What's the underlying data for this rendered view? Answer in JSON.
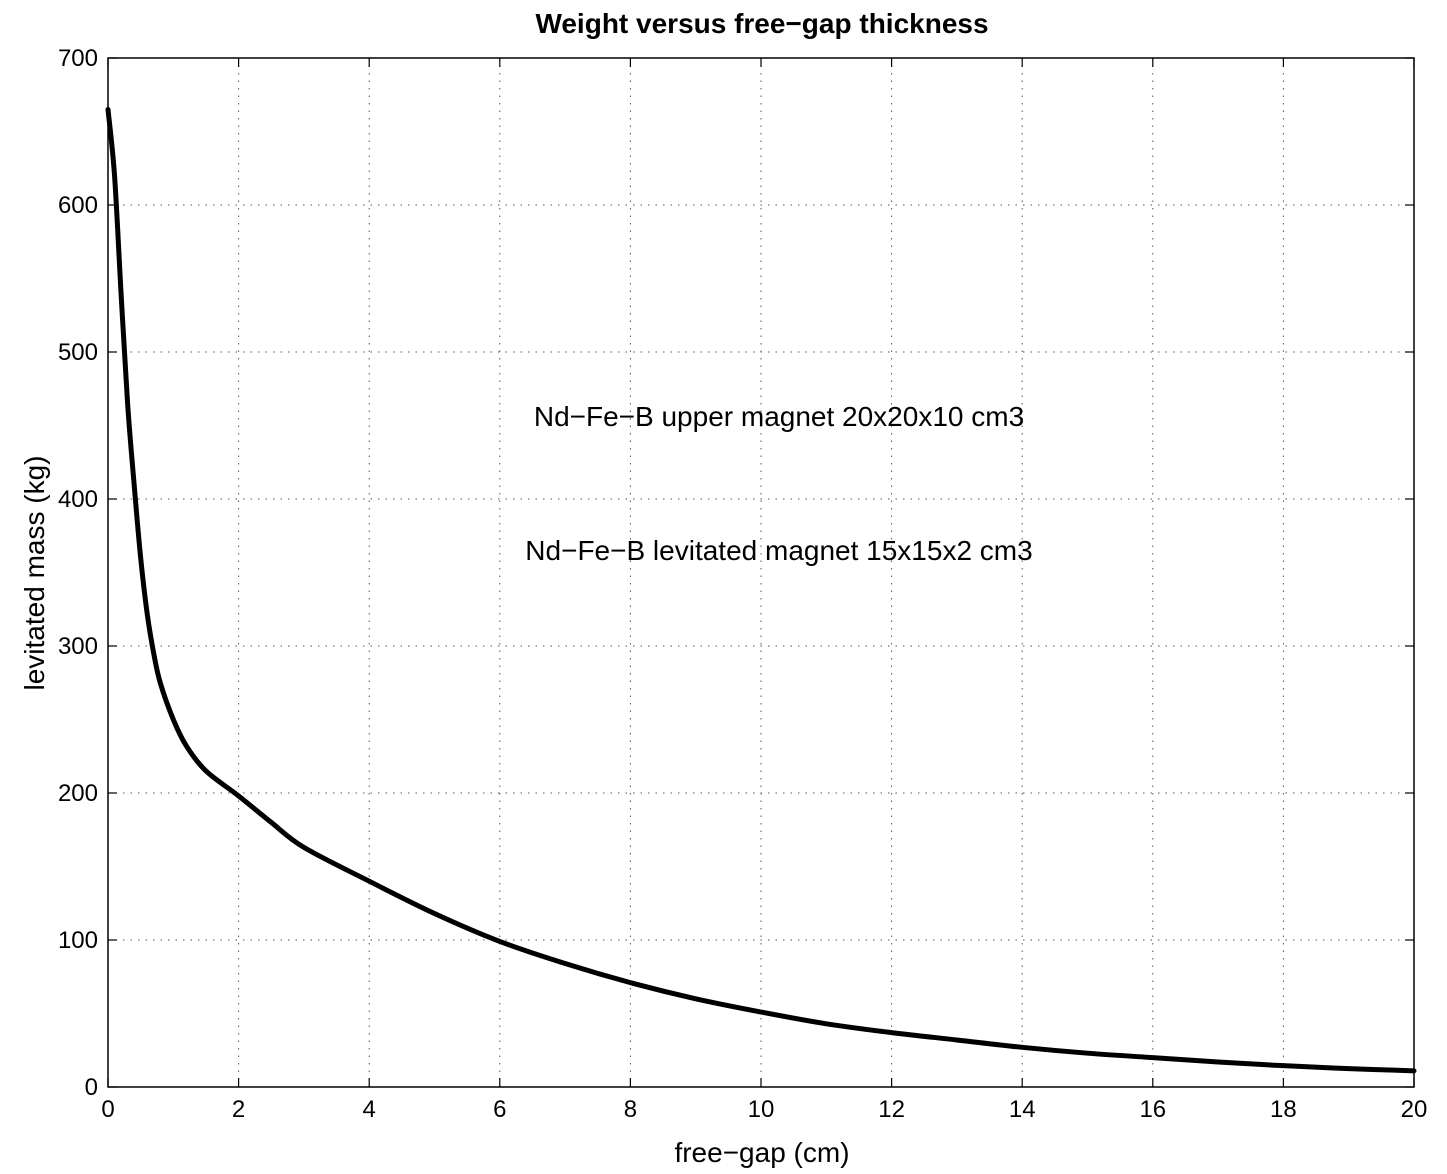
{
  "chart_data": {
    "type": "line",
    "title": "Weight versus free−gap thickness",
    "xlabel": "free−gap (cm)",
    "ylabel": "levitated mass (kg)",
    "xlim": [
      0,
      20
    ],
    "ylim": [
      0,
      700
    ],
    "xticks": [
      "0",
      "2",
      "4",
      "6",
      "8",
      "10",
      "12",
      "14",
      "16",
      "18",
      "20"
    ],
    "yticks": [
      "0",
      "100",
      "200",
      "300",
      "400",
      "500",
      "600",
      "700"
    ],
    "grid": true,
    "annotations": [
      "Nd−Fe−B upper magnet 20x20x10 cm3",
      "Nd−Fe−B levitated magnet 15x15x2 cm3"
    ],
    "series": [
      {
        "x": [
          0.0,
          0.1,
          0.2,
          0.3,
          0.4,
          0.5,
          0.6,
          0.7,
          0.8,
          1.0,
          1.2,
          1.5,
          2.0,
          2.5,
          3.0,
          4.0,
          5.0,
          6.0,
          7.0,
          8.0,
          9.0,
          10.0,
          11.0,
          12.0,
          13.0,
          14.0,
          15.0,
          16.0,
          17.0,
          18.0,
          19.0,
          20.0
        ],
        "y": [
          665,
          620,
          540,
          465,
          410,
          360,
          322,
          295,
          275,
          250,
          232,
          215,
          198,
          180,
          163,
          140,
          118,
          99,
          84,
          71,
          60,
          51,
          43,
          37,
          32,
          27,
          23,
          20,
          17,
          14.5,
          12.5,
          11
        ]
      }
    ]
  }
}
